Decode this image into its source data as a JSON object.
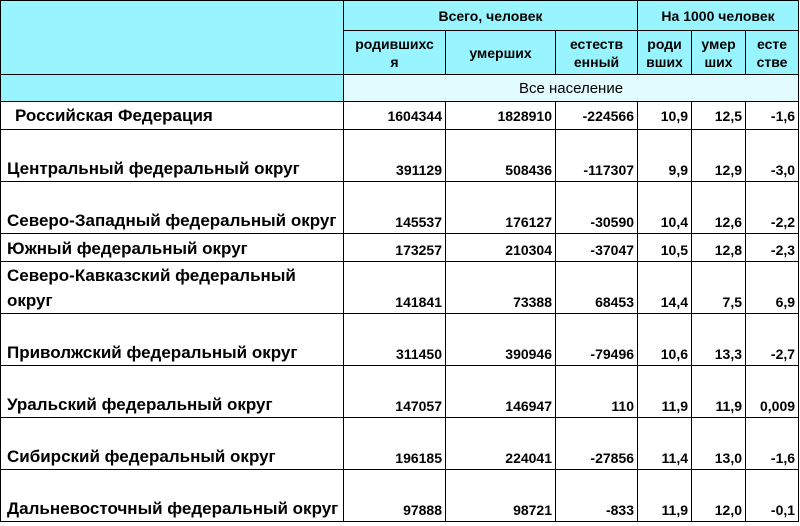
{
  "header": {
    "group_total": "Всего, человек",
    "group_per1000": "На 1000 человек",
    "col_births": "родившихс\nя",
    "col_deaths": "умерших",
    "col_natural": "естеств\nенный",
    "col_births_rate": "роди\nвших",
    "col_deaths_rate": "умер\nших",
    "col_natural_rate": "есте\nстве"
  },
  "subheader": "Все население",
  "rows": [
    {
      "name": "Российская Федерация",
      "births": "1604344",
      "deaths": "1828910",
      "natural": "-224566",
      "br": "10,9",
      "dr": "12,5",
      "nr": "-1,6"
    },
    {
      "name": "Центральный федеральный округ",
      "births": "391129",
      "deaths": "508436",
      "natural": "-117307",
      "br": "9,9",
      "dr": "12,9",
      "nr": "-3,0"
    },
    {
      "name": "Северо-Западный федеральный округ",
      "births": "145537",
      "deaths": "176127",
      "natural": "-30590",
      "br": "10,4",
      "dr": "12,6",
      "nr": "-2,2"
    },
    {
      "name": "Южный федеральный округ",
      "births": "173257",
      "deaths": "210304",
      "natural": "-37047",
      "br": "10,5",
      "dr": "12,8",
      "nr": "-2,3"
    },
    {
      "name": "Северо-Кавказский федеральный округ",
      "births": "141841",
      "deaths": "73388",
      "natural": "68453",
      "br": "14,4",
      "dr": "7,5",
      "nr": "6,9"
    },
    {
      "name": "Приволжский федеральный округ",
      "births": "311450",
      "deaths": "390946",
      "natural": "-79496",
      "br": "10,6",
      "dr": "13,3",
      "nr": "-2,7"
    },
    {
      "name": "Уральский федеральный округ",
      "births": "147057",
      "deaths": "146947",
      "natural": "110",
      "br": "11,9",
      "dr": "11,9",
      "nr": "0,009"
    },
    {
      "name": "Сибирский федеральный округ",
      "births": "196185",
      "deaths": "224041",
      "natural": "-27856",
      "br": "11,4",
      "dr": "13,0",
      "nr": "-1,6"
    },
    {
      "name": "Дальневосточный федеральный округ",
      "births": "97888",
      "deaths": "98721",
      "natural": "-833",
      "br": "11,9",
      "dr": "12,0",
      "nr": "-0,1"
    }
  ]
}
